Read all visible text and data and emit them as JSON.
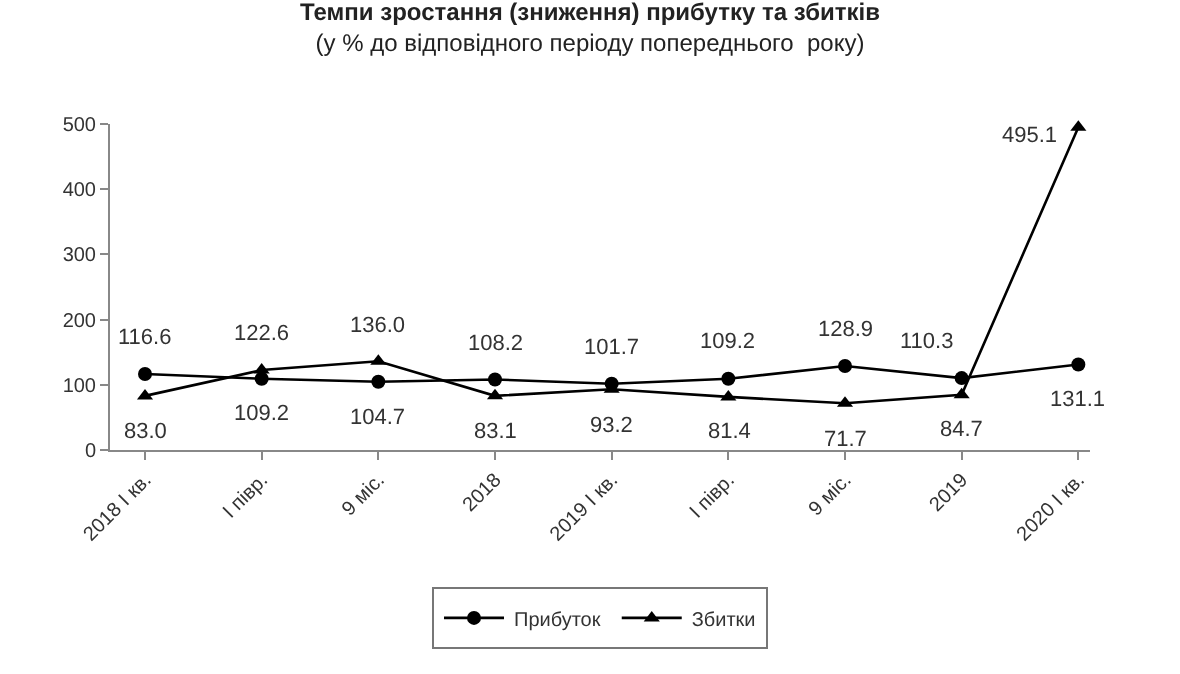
{
  "chart_data": {
    "type": "line",
    "title": "Темпи зростання (зниження) прибутку та збитків",
    "subtitle": "(у % до відповідного періоду попереднього  року)",
    "categories": [
      "2018 I кв.",
      "I півр.",
      "9 міс.",
      "2018",
      "2019 I кв.",
      "I півр.",
      "9 міс.",
      "2019",
      "2020 I кв."
    ],
    "series": [
      {
        "name": "Прибуток",
        "color": "#000000",
        "marker": "circle",
        "values": [
          116.6,
          109.2,
          104.7,
          108.2,
          101.7,
          109.2,
          128.9,
          110.3,
          131.1
        ],
        "value_labels": [
          "116.6",
          "109.2",
          "104.7",
          "108.2",
          "101.7",
          "109.2",
          "128.9",
          "110.3",
          "131.1"
        ]
      },
      {
        "name": "Збитки",
        "color": "#000000",
        "marker": "triangle",
        "values": [
          83.0,
          122.6,
          136.0,
          83.1,
          93.2,
          81.4,
          71.7,
          84.7,
          495.1
        ],
        "value_labels": [
          "83.0",
          "122.6",
          "136.0",
          "83.1",
          "93.2",
          "81.4",
          "71.7",
          "84.7",
          "495.1"
        ]
      }
    ],
    "ylim": [
      0,
      500
    ],
    "yticks": [
      0,
      100,
      200,
      300,
      400,
      500
    ],
    "grid": false,
    "legend": "bottom"
  }
}
